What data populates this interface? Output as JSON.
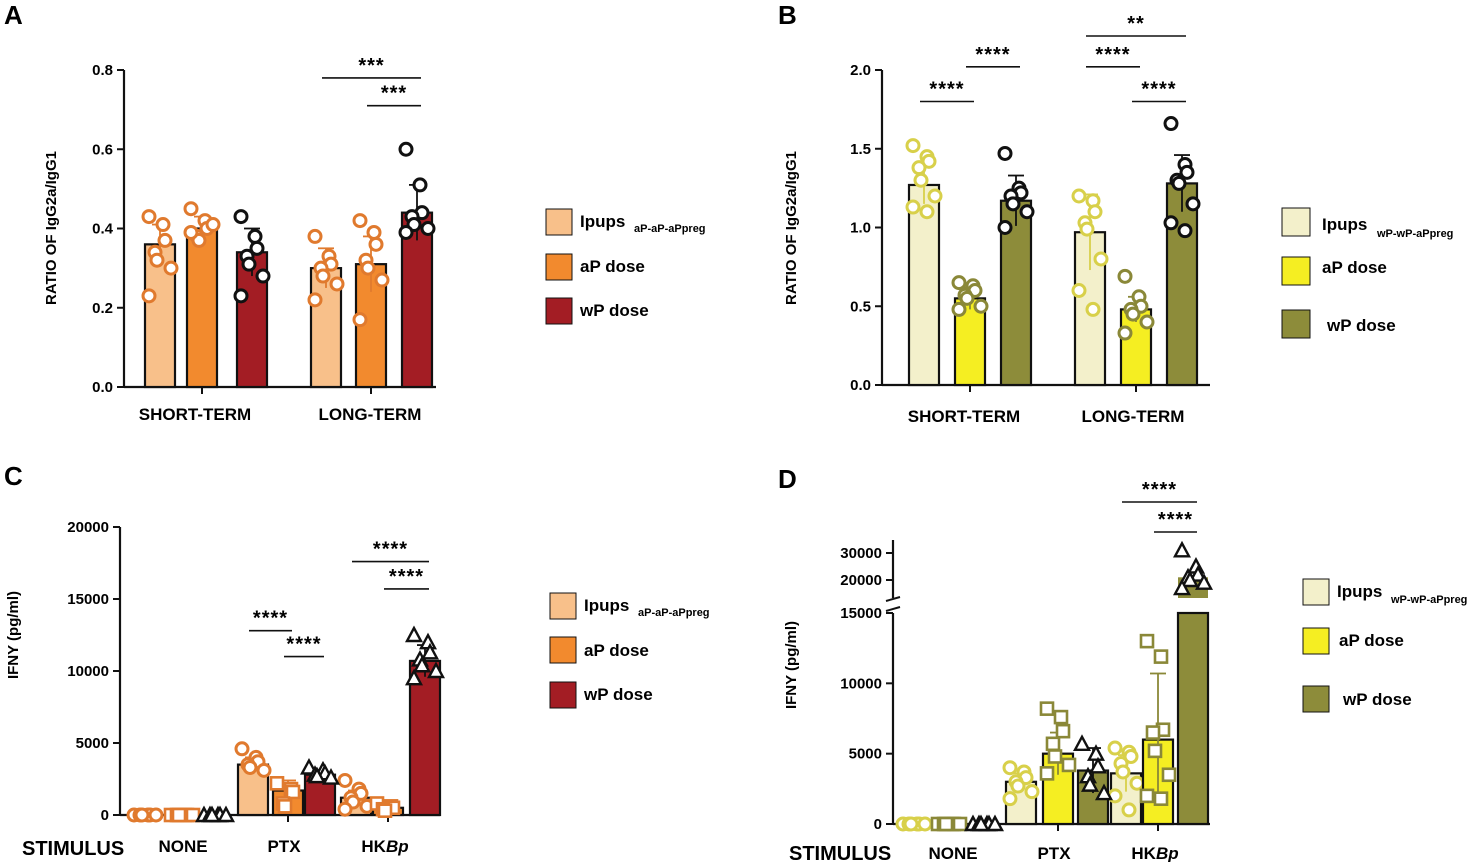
{
  "figure": {
    "colors": {
      "orange_light": "#F8C08A",
      "orange": "#F28A2E",
      "dark_red": "#A31D24",
      "orange_marker": "#E07A2E",
      "cream": "#F3F0CB",
      "yellow": "#F5EE22",
      "olive": "#8D8C3A",
      "yellow_marker": "#D8D04A",
      "olive_marker": "#8A8838"
    },
    "legend_AC": {
      "items": [
        {
          "label": "Ipups",
          "sub": "aP-aP-aPpreg",
          "color": "#F8C08A"
        },
        {
          "label": "aP dose",
          "sub": "",
          "color": "#F28A2E"
        },
        {
          "label": "wP dose",
          "sub": "",
          "color": "#A31D24"
        }
      ]
    },
    "legend_BD": {
      "items": [
        {
          "label": "Ipups",
          "sub": "wP-wP-aPpreg",
          "color": "#F3F0CB"
        },
        {
          "label": "aP dose",
          "sub": "",
          "color": "#F5EE22"
        },
        {
          "label": "wP dose",
          "sub": "",
          "color": "#8D8C3A"
        }
      ]
    }
  },
  "chart_data": [
    {
      "panel": "A",
      "type": "bar",
      "ylabel": "RATIO OF IgG2a/IgG1",
      "categories": [
        "SHORT-TERM",
        "LONG-TERM"
      ],
      "ylim": [
        0,
        0.8
      ],
      "yticks": [
        "0.0",
        "0.2",
        "0.4",
        "0.6",
        "0.8"
      ],
      "series": [
        {
          "name": "Ipups aP-aP-aPpreg",
          "values": [
            0.36,
            0.3
          ],
          "errors": [
            0.05,
            0.05
          ],
          "points": [
            [
              0.43,
              0.41,
              0.37,
              0.34,
              0.32,
              0.3,
              0.23
            ],
            [
              0.38,
              0.33,
              0.31,
              0.3,
              0.28,
              0.26,
              0.22
            ]
          ]
        },
        {
          "name": "aP dose",
          "values": [
            0.4,
            0.31
          ],
          "errors": [
            0.03,
            0.07
          ],
          "points": [
            [
              0.45,
              0.42,
              0.4,
              0.38,
              0.37,
              0.41,
              0.39
            ],
            [
              0.42,
              0.39,
              0.36,
              0.32,
              0.3,
              0.27,
              0.17
            ]
          ]
        },
        {
          "name": "wP dose",
          "values": [
            0.34,
            0.44
          ],
          "errors": [
            0.06,
            0.07
          ],
          "points": [
            [
              0.43,
              0.38,
              0.35,
              0.33,
              0.31,
              0.28,
              0.23
            ],
            [
              0.6,
              0.51,
              0.44,
              0.43,
              0.41,
              0.4,
              0.39
            ]
          ]
        }
      ],
      "annotations": [
        {
          "text": "***",
          "group": 1,
          "from": 0,
          "to": 2,
          "y": 0.78
        },
        {
          "text": "***",
          "group": 1,
          "from": 1,
          "to": 2,
          "y": 0.71
        }
      ]
    },
    {
      "panel": "B",
      "type": "bar",
      "ylabel": "RATIO OF IgG2a/IgG1",
      "categories": [
        "SHORT-TERM",
        "LONG-TERM"
      ],
      "ylim": [
        0,
        2.0
      ],
      "yticks": [
        "0.0",
        "0.5",
        "1.0",
        "1.5",
        "2.0"
      ],
      "series": [
        {
          "name": "Ipups wP-wP-aPpreg",
          "values": [
            1.27,
            0.97
          ],
          "errors": [
            0.12,
            0.24
          ],
          "points": [
            [
              1.52,
              1.45,
              1.42,
              1.38,
              1.3,
              1.2,
              1.13,
              1.1
            ],
            [
              1.2,
              1.17,
              1.1,
              1.03,
              0.99,
              0.8,
              0.6,
              0.48
            ]
          ]
        },
        {
          "name": "aP dose",
          "values": [
            0.55,
            0.48
          ],
          "errors": [
            0.07,
            0.08
          ],
          "points": [
            [
              0.65,
              0.63,
              0.6,
              0.57,
              0.55,
              0.5,
              0.48
            ],
            [
              0.69,
              0.56,
              0.5,
              0.48,
              0.45,
              0.4,
              0.33
            ]
          ]
        },
        {
          "name": "wP dose",
          "values": [
            1.17,
            1.28
          ],
          "errors": [
            0.16,
            0.18
          ],
          "points": [
            [
              1.47,
              1.25,
              1.22,
              1.2,
              1.15,
              1.1,
              1.0
            ],
            [
              1.66,
              1.4,
              1.35,
              1.3,
              1.28,
              1.15,
              1.03,
              0.98
            ]
          ]
        }
      ],
      "annotations": [
        {
          "text": "****",
          "group": 0,
          "from": 0,
          "to": 1,
          "y": 1.8
        },
        {
          "text": "****",
          "group": 0,
          "from": 1,
          "to": 2,
          "y": 2.02
        },
        {
          "text": "**",
          "group": 1,
          "from": 0,
          "to": 2,
          "y": 2.22
        },
        {
          "text": "****",
          "group": 1,
          "from": 0,
          "to": 1,
          "y": 2.02
        },
        {
          "text": "****",
          "group": 1,
          "from": 1,
          "to": 2,
          "y": 1.8
        }
      ]
    },
    {
      "panel": "C",
      "type": "bar",
      "ylabel": "IFNY (pg/ml)",
      "xlabel": "STIMULUS",
      "categories": [
        "NONE",
        "PTX",
        "HKBp"
      ],
      "ylim": [
        0,
        20000
      ],
      "yticks": [
        "0",
        "5000",
        "10000",
        "15000",
        "20000"
      ],
      "series": [
        {
          "name": "Ipups aP-aP-aPpreg",
          "marker": "circle",
          "values": [
            0,
            3500,
            1200
          ],
          "errors": [
            0,
            500,
            500
          ],
          "points": [
            [
              0,
              0,
              0,
              0,
              0,
              0
            ],
            [
              4600,
              4000,
              3700,
              3500,
              3300,
              3100
            ],
            [
              2400,
              1800,
              1500,
              1200,
              900,
              600,
              400
            ]
          ]
        },
        {
          "name": "aP dose",
          "marker": "square",
          "values": [
            0,
            1700,
            500
          ],
          "errors": [
            0,
            700,
            200
          ],
          "points": [
            [
              0,
              0,
              0,
              0,
              0,
              0
            ],
            [
              2200,
              1800,
              1600,
              800,
              600
            ],
            [
              800,
              600,
              500,
              400,
              300
            ]
          ]
        },
        {
          "name": "wP dose",
          "marker": "triangle",
          "values": [
            0,
            2800,
            10700
          ],
          "errors": [
            0,
            300,
            1100
          ],
          "points": [
            [
              0,
              0,
              0,
              0,
              0,
              0
            ],
            [
              3300,
              3100,
              2900,
              2800,
              2700,
              2600
            ],
            [
              12500,
              12000,
              11300,
              10800,
              10400,
              10000,
              9500
            ]
          ]
        }
      ],
      "annotations": [
        {
          "text": "****",
          "group": 1,
          "from": 0,
          "to": 1,
          "y": 12800
        },
        {
          "text": "****",
          "group": 1,
          "from": 1,
          "to": 2,
          "y": 11000
        },
        {
          "text": "****",
          "group": 2,
          "from": 0,
          "to": 2,
          "y": 17600
        },
        {
          "text": "****",
          "group": 2,
          "from": 1,
          "to": 2,
          "y": 15700
        }
      ]
    },
    {
      "panel": "D",
      "type": "bar",
      "ylabel": "IFNY (pg/ml)",
      "xlabel": "STIMULUS",
      "categories": [
        "NONE",
        "PTX",
        "HKBp"
      ],
      "ylim": [
        0,
        30000
      ],
      "axis_break": [
        15000,
        18000
      ],
      "yticks": [
        "0",
        "5000",
        "10000",
        "15000",
        "20000",
        "30000"
      ],
      "series": [
        {
          "name": "Ipups wP-wP-aPpreg",
          "marker": "circle",
          "values": [
            0,
            3000,
            3600
          ],
          "errors": [
            0,
            600,
            1300
          ],
          "points": [
            [
              0,
              0,
              0,
              0,
              0,
              0
            ],
            [
              4000,
              3700,
              3300,
              3000,
              2700,
              2300,
              1800
            ],
            [
              5400,
              5100,
              4800,
              4300,
              3700,
              2900,
              2000,
              1000
            ]
          ]
        },
        {
          "name": "aP dose",
          "marker": "square",
          "values": [
            0,
            5000,
            6000
          ],
          "errors": [
            0,
            1500,
            4700
          ],
          "points": [
            [
              0,
              0,
              0,
              0,
              0,
              0
            ],
            [
              8200,
              7600,
              6600,
              5700,
              4800,
              4200,
              3600
            ],
            [
              13000,
              11900,
              6700,
              6500,
              5200,
              3500,
              2000,
              1800
            ]
          ]
        },
        {
          "name": "wP dose",
          "marker": "triangle",
          "values": [
            0,
            3800,
            15000
          ],
          "errors": [
            0,
            1600,
            0
          ],
          "points": [
            [
              0,
              0,
              0,
              0,
              0,
              0
            ],
            [
              5700,
              5000,
              4100,
              3400,
              2800,
              2200
            ],
            [
              31000,
              25000,
              22000,
              21000,
              20000,
              19000,
              17000
            ]
          ]
        }
      ],
      "annotations": [
        {
          "text": "****",
          "group": 2,
          "from": 0,
          "to": 2,
          "y": "top1"
        },
        {
          "text": "****",
          "group": 2,
          "from": 1,
          "to": 2,
          "y": "top2"
        }
      ]
    }
  ]
}
